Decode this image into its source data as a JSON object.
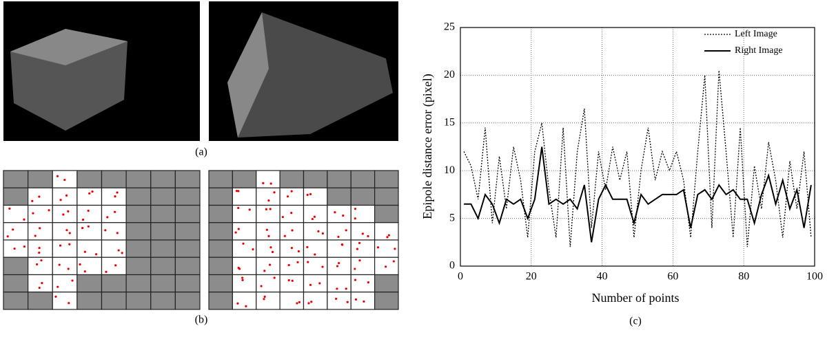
{
  "panels": {
    "a": "(a)",
    "b": "(b)"
  },
  "chart_data": {
    "type": "line",
    "panel_label": "(c)",
    "xlabel": "Number of points",
    "ylabel": "Epipole distance error (pixel)",
    "xlim": [
      0,
      100
    ],
    "ylim": [
      0,
      25
    ],
    "xticks": [
      0,
      20,
      40,
      60,
      80,
      100
    ],
    "yticks": [
      0,
      5,
      10,
      15,
      20,
      25
    ],
    "grid": true,
    "legend": "upper right",
    "x": [
      1,
      3,
      5,
      7,
      9,
      11,
      13,
      15,
      17,
      19,
      21,
      23,
      25,
      27,
      29,
      31,
      33,
      35,
      37,
      39,
      41,
      43,
      45,
      47,
      49,
      51,
      53,
      55,
      57,
      59,
      61,
      63,
      65,
      67,
      69,
      71,
      73,
      75,
      77,
      79,
      81,
      83,
      85,
      87,
      89,
      91,
      93,
      95,
      97,
      99
    ],
    "series": [
      {
        "name": "Left Image",
        "color": "#000000",
        "style": "dotted",
        "values": [
          12,
          10.5,
          7,
          14.5,
          4.5,
          11.5,
          6,
          12.5,
          9,
          3,
          12,
          15,
          8,
          3,
          14.5,
          2,
          12,
          16.5,
          4,
          12,
          8,
          12.5,
          9,
          12,
          3,
          10,
          14.5,
          9,
          12,
          10,
          12,
          9,
          3,
          12,
          20,
          4,
          20.5,
          12,
          3,
          14.5,
          2,
          10.5,
          6,
          13,
          9,
          3,
          11,
          6,
          12,
          3
        ]
      },
      {
        "name": "Right Image",
        "color": "#000000",
        "style": "solid",
        "values": [
          6.5,
          6.5,
          5,
          7.5,
          6.5,
          4.5,
          7,
          6.5,
          7,
          5,
          7,
          12.5,
          6.5,
          7,
          6.5,
          7,
          6,
          8.5,
          2.5,
          7,
          8.5,
          7,
          7,
          7,
          4.5,
          7.5,
          6.5,
          7,
          7.5,
          7.5,
          7.5,
          8,
          4,
          7.5,
          8,
          7,
          8.5,
          7.5,
          8,
          7,
          7,
          4.5,
          7.5,
          9.5,
          6.5,
          9,
          6,
          8,
          4,
          8.5
        ]
      }
    ]
  }
}
